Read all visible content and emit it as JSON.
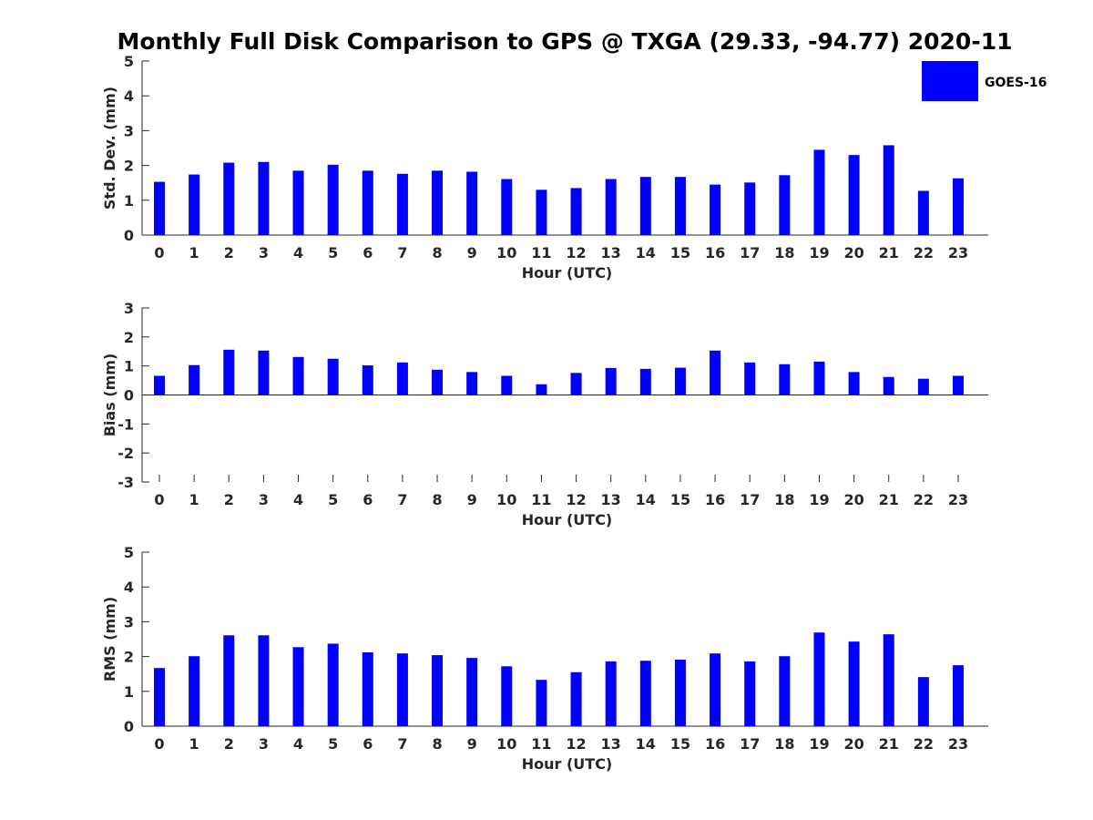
{
  "title": "Monthly Full Disk Comparison to GPS @ TXGA (29.33, -94.77) 2020-11",
  "legend": {
    "label": "GOES-16",
    "color": "#0000ff"
  },
  "chart_data": [
    {
      "type": "bar",
      "title": "Monthly Full Disk Comparison to GPS @ TXGA (29.33, -94.77) 2020-11",
      "xlabel": "Hour (UTC)",
      "ylabel": "Std. Dev. (mm)",
      "ylim": [
        0,
        5
      ],
      "yticks": [
        "0",
        "1",
        "2",
        "3",
        "4",
        "5"
      ],
      "categories": [
        "0",
        "1",
        "2",
        "3",
        "4",
        "5",
        "6",
        "7",
        "8",
        "9",
        "10",
        "11",
        "12",
        "13",
        "14",
        "15",
        "16",
        "17",
        "18",
        "19",
        "20",
        "21",
        "22",
        "23"
      ],
      "series": [
        {
          "name": "GOES-16",
          "color": "#0000ff",
          "values": [
            1.53,
            1.74,
            2.08,
            2.1,
            1.85,
            2.02,
            1.85,
            1.76,
            1.85,
            1.82,
            1.61,
            1.3,
            1.35,
            1.61,
            1.67,
            1.67,
            1.45,
            1.51,
            1.72,
            2.45,
            2.3,
            2.58,
            1.27,
            1.63
          ]
        }
      ]
    },
    {
      "type": "bar",
      "xlabel": "Hour (UTC)",
      "ylabel": "Bias (mm)",
      "ylim": [
        -3,
        3
      ],
      "yticks": [
        "-3",
        "-2",
        "-1",
        "0",
        "1",
        "2",
        "3"
      ],
      "categories": [
        "0",
        "1",
        "2",
        "3",
        "4",
        "5",
        "6",
        "7",
        "8",
        "9",
        "10",
        "11",
        "12",
        "13",
        "14",
        "15",
        "16",
        "17",
        "18",
        "19",
        "20",
        "21",
        "22",
        "23"
      ],
      "series": [
        {
          "name": "GOES-16",
          "color": "#0000ff",
          "values": [
            0.66,
            1.03,
            1.56,
            1.53,
            1.31,
            1.25,
            1.02,
            1.12,
            0.87,
            0.79,
            0.66,
            0.37,
            0.76,
            0.93,
            0.9,
            0.94,
            1.53,
            1.12,
            1.06,
            1.15,
            0.79,
            0.62,
            0.56,
            0.66
          ]
        }
      ]
    },
    {
      "type": "bar",
      "xlabel": "Hour (UTC)",
      "ylabel": "RMS (mm)",
      "ylim": [
        0,
        5
      ],
      "yticks": [
        "0",
        "1",
        "2",
        "3",
        "4",
        "5"
      ],
      "categories": [
        "0",
        "1",
        "2",
        "3",
        "4",
        "5",
        "6",
        "7",
        "8",
        "9",
        "10",
        "11",
        "12",
        "13",
        "14",
        "15",
        "16",
        "17",
        "18",
        "19",
        "20",
        "21",
        "22",
        "23"
      ],
      "series": [
        {
          "name": "GOES-16",
          "color": "#0000ff",
          "values": [
            1.67,
            2.01,
            2.61,
            2.61,
            2.27,
            2.37,
            2.12,
            2.09,
            2.04,
            1.96,
            1.72,
            1.33,
            1.55,
            1.86,
            1.88,
            1.91,
            2.09,
            1.86,
            2.01,
            2.69,
            2.43,
            2.64,
            1.41,
            1.75
          ]
        }
      ]
    }
  ]
}
